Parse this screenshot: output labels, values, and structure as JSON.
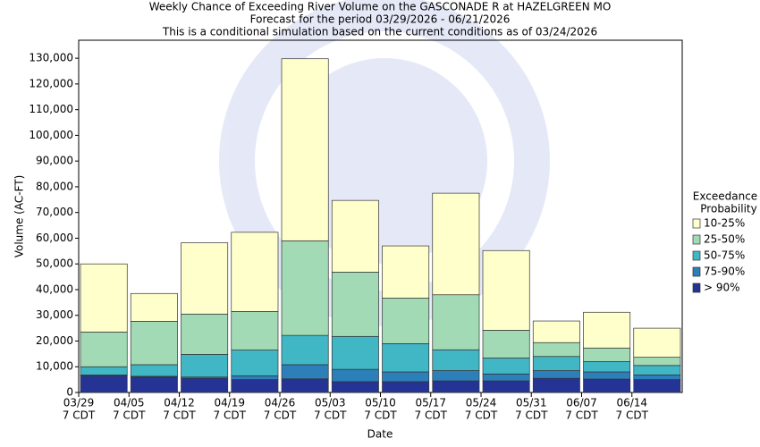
{
  "chart_data": {
    "type": "stacked_bar",
    "title": [
      "Weekly Chance of Exceeding River Volume on the GASCONADE R at HAZELGREEN MO",
      "Forecast for the period 03/29/2026 - 06/21/2026",
      "This is a conditional simulation based on the current conditions as of 03/24/2026"
    ],
    "x_label": "Date",
    "y_label": "Volume (AC-FT)",
    "categories": [
      "03/29",
      "04/05",
      "04/12",
      "04/19",
      "04/26",
      "05/03",
      "05/10",
      "05/17",
      "05/24",
      "05/31",
      "06/07",
      "06/14"
    ],
    "category_sublabels": [
      "7 CDT",
      "7 CDT",
      "7 CDT",
      "7 CDT",
      "7 CDT",
      "7 CDT",
      "7 CDT",
      "7 CDT",
      "7 CDT",
      "7 CDT",
      "7 CDT",
      "7 CDT"
    ],
    "legend_title": [
      "Exceedance",
      "Probability"
    ],
    "series": [
      {
        "name": "> 90%",
        "color": "#253494",
        "values": [
          6500,
          6000,
          5500,
          5000,
          5300,
          4200,
          4200,
          4500,
          4500,
          5500,
          5200,
          5000
        ]
      },
      {
        "name": "75-90%",
        "color": "#2c7fb8",
        "values": [
          300,
          300,
          500,
          1500,
          5500,
          4800,
          3800,
          4000,
          2700,
          3000,
          2800,
          1800
        ]
      },
      {
        "name": "50-75%",
        "color": "#41b6c4",
        "values": [
          3200,
          4500,
          8800,
          10000,
          11400,
          12800,
          11000,
          8100,
          6200,
          5500,
          4000,
          3700
        ]
      },
      {
        "name": "25-50%",
        "color": "#a1dab4",
        "values": [
          13500,
          16900,
          15700,
          15000,
          36800,
          25000,
          17700,
          21400,
          10800,
          5400,
          5300,
          3200
        ]
      },
      {
        "name": "10-25%",
        "color": "#ffffcc",
        "values": [
          26500,
          10800,
          27700,
          30800,
          70800,
          27900,
          20300,
          39500,
          31000,
          8400,
          13900,
          11300
        ]
      }
    ],
    "ylim": [
      0,
      137000
    ],
    "yticks": [
      0,
      {
        "value": 10000,
        "label": "10,000"
      },
      {
        "value": 20000,
        "label": "20,000"
      },
      {
        "value": 30000,
        "label": "30,000"
      },
      {
        "value": 40000,
        "label": "40,000"
      },
      {
        "value": 50000,
        "label": "50,000"
      },
      {
        "value": 60000,
        "label": "60,000"
      },
      {
        "value": 70000,
        "label": "70,000"
      },
      {
        "value": 80000,
        "label": "80,000"
      },
      {
        "value": 90000,
        "label": "90,000"
      },
      {
        "value": 100000,
        "label": "100,000"
      },
      {
        "value": 110000,
        "label": "110,000"
      },
      {
        "value": 120000,
        "label": "120,000"
      },
      {
        "value": 130000,
        "label": "130,000"
      }
    ],
    "legend": "right"
  }
}
